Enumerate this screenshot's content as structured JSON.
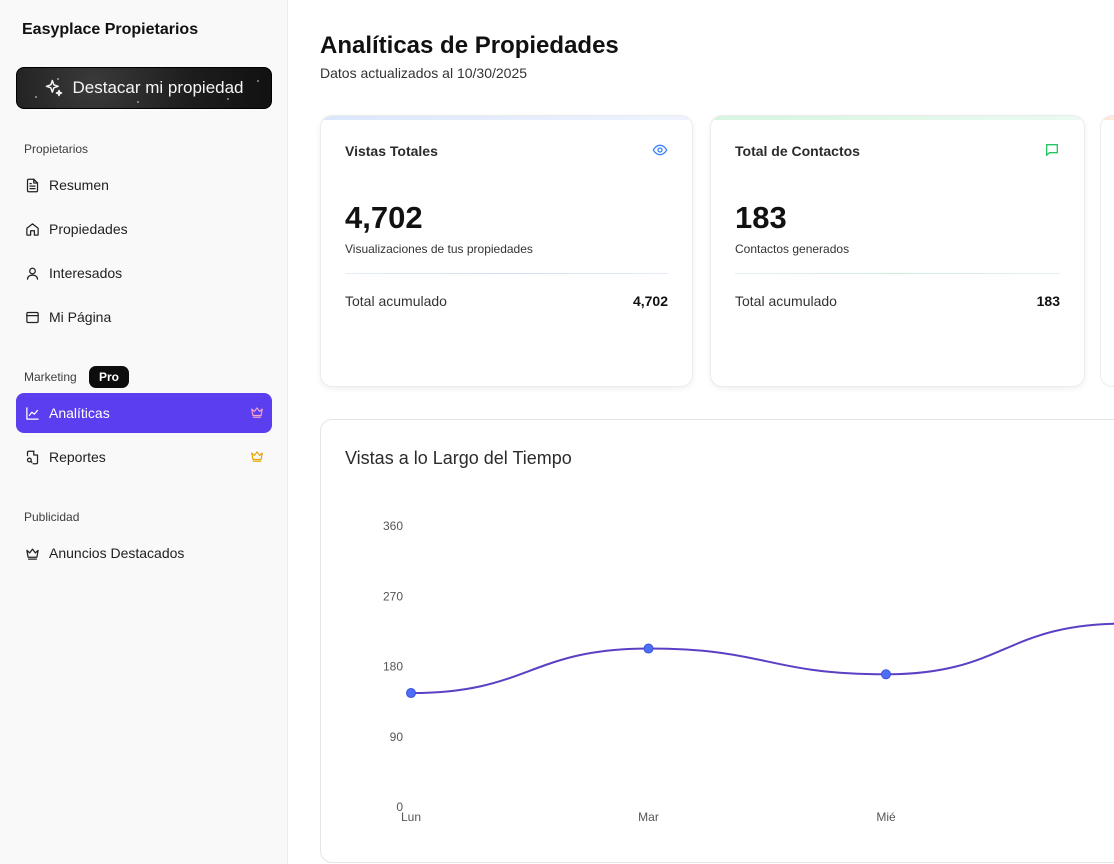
{
  "sidebar": {
    "brand": "Easyplace Propietarios",
    "feature_button": "Destacar mi propiedad",
    "sections": {
      "propietarios": "Propietarios",
      "marketing": "Marketing",
      "publicidad": "Publicidad"
    },
    "pro_badge": "Pro",
    "items": {
      "resumen": "Resumen",
      "propiedades": "Propiedades",
      "interesados": "Interesados",
      "mi_pagina": "Mi Página",
      "analiticas": "Analíticas",
      "reportes": "Reportes",
      "anuncios": "Anuncios Destacados"
    },
    "active_color": "#5b3ef0"
  },
  "header": {
    "title": "Analíticas de Propiedades",
    "subtitle": "Datos actualizados al 10/30/2025"
  },
  "cards": [
    {
      "title": "Vistas Totales",
      "icon": "eye-icon",
      "value": "4,702",
      "description": "Visualizaciones de tus propiedades",
      "footer_label": "Total acumulado",
      "footer_value": "4,702",
      "accent": "#3b82f6"
    },
    {
      "title": "Total de Contactos",
      "icon": "message-icon",
      "value": "183",
      "description": "Contactos generados",
      "footer_label": "Total acumulado",
      "footer_value": "183",
      "accent": "#22c55e"
    }
  ],
  "chart": {
    "title": "Vistas a lo Largo del Tiempo"
  },
  "chart_data": {
    "type": "line",
    "title": "Vistas a lo Largo del Tiempo",
    "categories": [
      "Lun",
      "Mar",
      "Mié"
    ],
    "values": [
      146,
      203,
      170
    ],
    "trailing_value": 235,
    "yticks": [
      0,
      90,
      180,
      270,
      360
    ],
    "ylim": [
      0,
      360
    ],
    "grid": false,
    "line_color": "#5b3fc4",
    "point_color": "#4f6ef7"
  }
}
